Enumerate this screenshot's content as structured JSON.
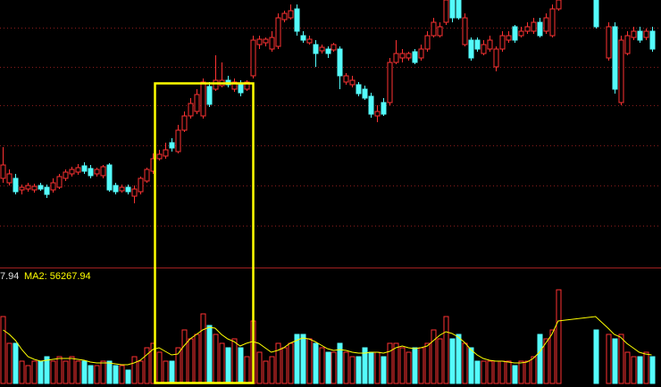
{
  "chart_data": {
    "type": "candlestick",
    "x": [
      0,
      1,
      2,
      3,
      4,
      5,
      6,
      7,
      8,
      9,
      10,
      11,
      12,
      13,
      14,
      15,
      16,
      17,
      18,
      19,
      20,
      21,
      22,
      23,
      24,
      25,
      26,
      27,
      28,
      29,
      30,
      31,
      32,
      33,
      34,
      35,
      36,
      37,
      38,
      39,
      40,
      41,
      42,
      43,
      44,
      45,
      46,
      47,
      48,
      49,
      50,
      51,
      52,
      53,
      54,
      55,
      56,
      57,
      58,
      59,
      60,
      61,
      62,
      63,
      64,
      65,
      66,
      67,
      68,
      69,
      70,
      71,
      72,
      73,
      74,
      75,
      76,
      77,
      78,
      79,
      80,
      81,
      82,
      83,
      84,
      85,
      86,
      87,
      88,
      89,
      95,
      97,
      98,
      99,
      100,
      101,
      102,
      103,
      104
    ],
    "open": [
      100,
      95,
      100,
      87,
      88,
      87,
      92,
      90,
      87,
      90,
      100,
      105,
      107,
      114,
      111,
      105,
      103,
      115,
      92,
      86,
      90,
      80,
      85,
      97,
      108,
      122,
      125,
      140,
      130,
      154,
      170,
      175,
      170,
      203,
      200,
      204,
      210,
      200,
      205,
      200,
      215,
      250,
      252,
      245,
      248,
      278,
      280,
      290,
      260,
      252,
      250,
      243,
      245,
      244,
      245,
      208,
      205,
      205,
      200,
      192,
      170,
      185,
      185,
      230,
      235,
      235,
      242,
      235,
      245,
      260,
      260,
      275,
      300,
      300,
      250,
      255,
      255,
      240,
      245,
      225,
      245,
      255,
      270,
      260,
      265,
      265,
      275,
      265,
      260,
      290,
      300,
      235,
      270,
      185,
      240,
      258,
      265,
      258,
      265
    ],
    "high": [
      135,
      110,
      105,
      93,
      95,
      94,
      95,
      93,
      100,
      105,
      110,
      113,
      116,
      118,
      115,
      112,
      115,
      117,
      95,
      93,
      93,
      92,
      102,
      112,
      128,
      132,
      140,
      145,
      160,
      175,
      190,
      200,
      212,
      208,
      238,
      230,
      215,
      212,
      210,
      210,
      260,
      260,
      258,
      265,
      285,
      288,
      295,
      295,
      265,
      260,
      255,
      250,
      248,
      252,
      248,
      218,
      215,
      208,
      204,
      196,
      182,
      190,
      235,
      255,
      245,
      242,
      245,
      250,
      265,
      280,
      275,
      300,
      300,
      300,
      285,
      258,
      258,
      255,
      260,
      248,
      265,
      265,
      272,
      270,
      275,
      280,
      280,
      285,
      295,
      300,
      300,
      275,
      275,
      260,
      265,
      270,
      270,
      268,
      270
    ],
    "low": [
      95,
      92,
      82,
      82,
      85,
      84,
      86,
      78,
      84,
      88,
      97,
      102,
      104,
      105,
      100,
      102,
      100,
      85,
      82,
      84,
      82,
      72,
      82,
      95,
      105,
      120,
      122,
      130,
      128,
      152,
      167,
      172,
      167,
      180,
      198,
      202,
      202,
      197,
      192,
      198,
      212,
      245,
      248,
      242,
      245,
      275,
      278,
      260,
      252,
      250,
      225,
      240,
      235,
      242,
      200,
      205,
      202,
      192,
      188,
      168,
      163,
      170,
      182,
      228,
      230,
      232,
      228,
      232,
      242,
      258,
      258,
      272,
      275,
      278,
      248,
      232,
      242,
      238,
      242,
      220,
      242,
      252,
      252,
      258,
      262,
      262,
      258,
      262,
      258,
      288,
      268,
      232,
      195,
      182,
      238,
      255,
      252,
      255,
      242
    ],
    "close": [
      115,
      105,
      85,
      90,
      92,
      91,
      88,
      82,
      95,
      102,
      107,
      110,
      112,
      108,
      103,
      110,
      113,
      87,
      85,
      90,
      85,
      88,
      100,
      110,
      122,
      127,
      132,
      134,
      154,
      170,
      184,
      194,
      208,
      183,
      210,
      210,
      205,
      208,
      196,
      208,
      255,
      256,
      256,
      258,
      280,
      285,
      288,
      265,
      255,
      256,
      240,
      247,
      240,
      250,
      215,
      215,
      210,
      195,
      190,
      172,
      175,
      172,
      230,
      240,
      240,
      240,
      230,
      245,
      260,
      275,
      270,
      300,
      280,
      280,
      280,
      235,
      245,
      250,
      255,
      245,
      260,
      260,
      255,
      265,
      270,
      275,
      260,
      280,
      290,
      300,
      270,
      270,
      200,
      255,
      260,
      265,
      255,
      265,
      245
    ],
    "xlim": [
      -0.5,
      105.5
    ],
    "ylim": [
      0,
      300
    ],
    "yticks": [
      47,
      92,
      137,
      182,
      225,
      269
    ],
    "grid": true,
    "up_color": "#ff3232",
    "down_color": "#54fcfc",
    "volume": {
      "values": [
        75,
        45,
        45,
        25,
        20,
        25,
        25,
        30,
        25,
        30,
        25,
        30,
        25,
        25,
        20,
        20,
        25,
        25,
        20,
        20,
        15,
        30,
        25,
        40,
        45,
        35,
        25,
        25,
        40,
        60,
        50,
        55,
        78,
        65,
        55,
        45,
        40,
        50,
        40,
        30,
        70,
        35,
        25,
        30,
        45,
        40,
        45,
        55,
        55,
        50,
        45,
        40,
        35,
        35,
        45,
        35,
        30,
        30,
        40,
        35,
        35,
        30,
        45,
        45,
        40,
        35,
        40,
        40,
        45,
        60,
        50,
        75,
        50,
        55,
        45,
        40,
        25,
        25,
        25,
        25,
        25,
        25,
        20,
        25,
        25,
        30,
        55,
        50,
        60,
        105,
        60,
        55,
        50,
        55,
        35,
        30,
        30,
        35,
        30
      ],
      "ma": [
        60,
        55,
        48,
        38,
        30,
        27,
        25,
        26,
        27,
        28,
        28,
        28,
        27,
        26,
        24,
        23,
        23,
        23,
        22,
        21,
        21,
        23,
        26,
        32,
        38,
        40,
        36,
        32,
        33,
        42,
        50,
        55,
        60,
        63,
        62,
        55,
        50,
        47,
        42,
        45,
        47,
        45,
        40,
        35,
        37,
        40,
        45,
        48,
        51,
        50,
        47,
        43,
        39,
        37,
        38,
        37,
        35,
        34,
        34,
        35,
        35,
        34,
        36,
        40,
        42,
        40,
        39,
        40,
        42,
        48,
        54,
        58,
        56,
        52,
        46,
        38,
        32,
        28,
        26,
        25,
        25,
        24,
        23,
        23,
        24,
        28,
        35,
        45,
        55,
        70,
        75,
        62,
        55,
        52,
        45,
        40,
        35,
        33,
        32
      ],
      "ylim": [
        0,
        130
      ],
      "ma_color": "#ffff00"
    },
    "labels": [
      "7.94",
      "MA2: 56267.94"
    ]
  }
}
